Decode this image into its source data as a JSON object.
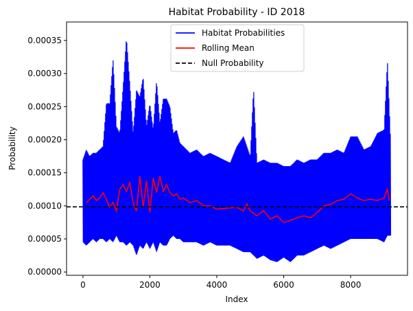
{
  "chart_data": {
    "type": "line",
    "title": "Habitat Probability - ID 2018",
    "xlabel": "Index",
    "ylabel": "Probability",
    "xlim": [
      -490,
      9700
    ],
    "ylim": [
      -5e-06,
      0.000378
    ],
    "xticks": [
      0,
      2000,
      4000,
      6000,
      8000
    ],
    "yticks": [
      0.0,
      5e-05,
      0.0001,
      0.00015,
      0.0002,
      0.00025,
      0.0003,
      0.00035
    ],
    "xtick_labels": [
      "0",
      "2000",
      "4000",
      "6000",
      "8000"
    ],
    "ytick_labels": [
      "0.00000",
      "0.00005",
      "0.00010",
      "0.00015",
      "0.00020",
      "0.00025",
      "0.00030",
      "0.00035"
    ],
    "legend_position": "upper center",
    "series": [
      {
        "name": "Habitat Probabilities",
        "color": "#0000ff",
        "style": "solid",
        "envelope": {
          "x": [
            0,
            100,
            200,
            300,
            400,
            500,
            600,
            700,
            800,
            900,
            1000,
            1100,
            1200,
            1300,
            1400,
            1500,
            1600,
            1700,
            1800,
            1900,
            2000,
            2100,
            2200,
            2300,
            2400,
            2500,
            2600,
            2700,
            2800,
            2900,
            3000,
            3200,
            3400,
            3600,
            3800,
            4000,
            4200,
            4400,
            4600,
            4800,
            5000,
            5100,
            5200,
            5400,
            5600,
            5800,
            6000,
            6200,
            6400,
            6600,
            6800,
            7000,
            7200,
            7400,
            7600,
            7800,
            8000,
            8200,
            8400,
            8600,
            8800,
            9000,
            9100,
            9200
          ],
          "max": [
            0.00017,
            0.000185,
            0.000175,
            0.00018,
            0.00018,
            0.000185,
            0.00019,
            0.000255,
            0.000255,
            0.000322,
            0.00022,
            0.00021,
            0.00028,
            0.000355,
            0.000285,
            0.00021,
            0.000275,
            0.000265,
            0.000295,
            0.00022,
            0.000255,
            0.000215,
            0.00029,
            0.000225,
            0.000262,
            0.000262,
            0.00025,
            0.00021,
            0.000215,
            0.000195,
            0.00019,
            0.00018,
            0.000185,
            0.000175,
            0.00018,
            0.000175,
            0.00017,
            0.000165,
            0.00019,
            0.000205,
            0.000175,
            0.000278,
            0.000165,
            0.00017,
            0.000165,
            0.000165,
            0.00016,
            0.00016,
            0.00017,
            0.000165,
            0.00017,
            0.00017,
            0.00018,
            0.00018,
            0.000185,
            0.00018,
            0.000205,
            0.000205,
            0.000185,
            0.00019,
            0.00021,
            0.000215,
            0.00032,
            0.00019
          ],
          "min": [
            4.5e-05,
            4e-05,
            4.5e-05,
            5e-05,
            4.5e-05,
            5e-05,
            5e-05,
            4.5e-05,
            5e-05,
            4.5e-05,
            5.5e-05,
            4.5e-05,
            4.5e-05,
            4e-05,
            4.5e-05,
            4e-05,
            2.5e-05,
            4e-05,
            3.5e-05,
            4.5e-05,
            3.5e-05,
            4.5e-05,
            3e-05,
            4.5e-05,
            4e-05,
            4e-05,
            5e-05,
            5.5e-05,
            5e-05,
            5e-05,
            4.5e-05,
            4.5e-05,
            4.5e-05,
            4e-05,
            4.5e-05,
            4e-05,
            4e-05,
            4e-05,
            3.5e-05,
            3e-05,
            3e-05,
            2.5e-05,
            2e-05,
            2.5e-05,
            1.8e-05,
            1.5e-05,
            2.2e-05,
            1.5e-05,
            2.5e-05,
            2.5e-05,
            3e-05,
            3.5e-05,
            4e-05,
            3.5e-05,
            4e-05,
            4.5e-05,
            5e-05,
            5e-05,
            5e-05,
            5e-05,
            5e-05,
            4.5e-05,
            5.5e-05,
            5.5e-05
          ]
        }
      },
      {
        "name": "Rolling Mean",
        "color": "#ff0000",
        "style": "solid",
        "x": [
          100,
          200,
          300,
          400,
          500,
          600,
          700,
          800,
          900,
          1000,
          1100,
          1200,
          1300,
          1400,
          1500,
          1600,
          1700,
          1800,
          1900,
          2000,
          2100,
          2200,
          2300,
          2400,
          2500,
          2600,
          2700,
          2800,
          2900,
          3000,
          3200,
          3400,
          3600,
          3800,
          4000,
          4200,
          4400,
          4600,
          4800,
          4900,
          5000,
          5200,
          5400,
          5600,
          5800,
          6000,
          6200,
          6400,
          6600,
          6800,
          7000,
          7200,
          7400,
          7600,
          7800,
          8000,
          8200,
          8400,
          8600,
          8800,
          9000,
          9100,
          9150
        ],
        "y": [
          0.000105,
          0.00011,
          0.000115,
          0.000108,
          0.000112,
          0.00012,
          0.00011,
          9.8e-05,
          0.000105,
          9.2e-05,
          0.000125,
          0.000132,
          0.000122,
          0.000135,
          0.000105,
          9.2e-05,
          0.000145,
          9.8e-05,
          0.000138,
          9e-05,
          0.000142,
          0.00012,
          0.000145,
          0.000122,
          0.000132,
          0.00012,
          0.000115,
          0.000118,
          0.00011,
          0.000112,
          0.000105,
          0.000108,
          0.0001,
          0.0001,
          9.5e-05,
          9.6e-05,
          9.7e-05,
          9.8e-05,
          9.2e-05,
          0.000103,
          9.2e-05,
          8.5e-05,
          9.3e-05,
          8e-05,
          8.5e-05,
          7.5e-05,
          7.8e-05,
          8.2e-05,
          8.5e-05,
          8.2e-05,
          9e-05,
          0.0001,
          0.000102,
          0.000108,
          0.00011,
          0.000118,
          0.000112,
          0.000108,
          0.00011,
          0.000108,
          0.000112,
          0.000125,
          0.000108
        ]
      },
      {
        "name": "Null Probability",
        "color": "#000000",
        "style": "dashed",
        "y": 9.85e-05
      }
    ]
  }
}
